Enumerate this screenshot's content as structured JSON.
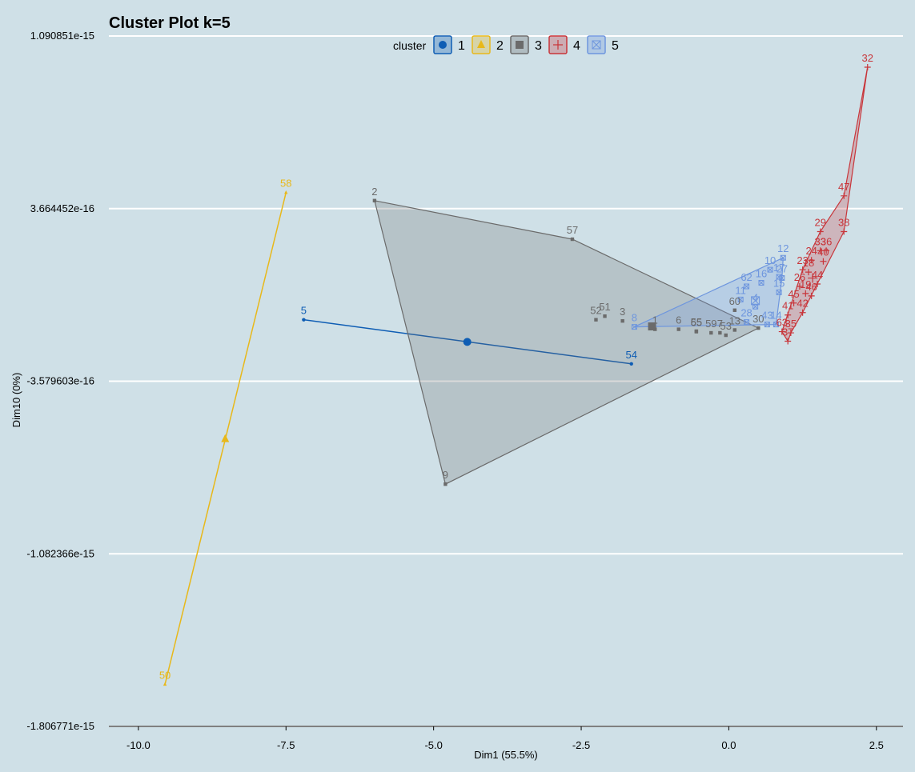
{
  "chart_data": {
    "type": "scatter",
    "title": "Cluster Plot k=5",
    "xlabel": "Dim1 (55.5%)",
    "ylabel": "Dim10 (0%)",
    "xlim": [
      -10.5,
      2.95
    ],
    "ylim": [
      -1.806771e-15,
      1.090851e-15
    ],
    "x_ticks": [
      -10.0,
      -7.5,
      -5.0,
      -2.5,
      0.0,
      2.5
    ],
    "x_tick_labels": [
      "-10.0",
      "-7.5",
      "-5.0",
      "-2.5",
      "0.0",
      "2.5"
    ],
    "y_ticks": [
      1.090851e-15,
      3.664452e-16,
      -3.579603e-16,
      -1.082366e-15,
      -1.806771e-15
    ],
    "y_tick_labels": [
      "1.090851e-15",
      "3.664452e-16",
      "-3.579603e-16",
      "-1.082366e-15",
      "-1.806771e-15"
    ],
    "grid": "horizontal",
    "legend": {
      "title": "cluster",
      "position": "top",
      "entries": [
        {
          "label": "1",
          "color": "#0e5db4",
          "shape": "circle"
        },
        {
          "label": "2",
          "color": "#e8b81a",
          "shape": "triangle"
        },
        {
          "label": "3",
          "color": "#6b6b6b",
          "shape": "square"
        },
        {
          "label": "4",
          "color": "#c8353a",
          "shape": "plus"
        },
        {
          "label": "5",
          "color": "#6e96de",
          "shape": "boxx"
        }
      ]
    },
    "series": [
      {
        "name": "1",
        "color": "#0e5db4",
        "shape": "circle",
        "points": [
          {
            "id": "5",
            "x": -7.2,
            "y": -1e-16
          },
          {
            "id": "54",
            "x": -1.65,
            "y": -2.85e-16
          }
        ],
        "hull": [
          "5",
          "54"
        ],
        "center": {
          "x": -4.43,
          "y": -1.93e-16
        }
      },
      {
        "name": "2",
        "color": "#e8b81a",
        "shape": "triangle",
        "points": [
          {
            "id": "58",
            "x": -7.5,
            "y": 4.34e-16
          },
          {
            "id": "50",
            "x": -9.55,
            "y": -1.63e-15
          }
        ],
        "hull": [
          "58",
          "50"
        ],
        "center": {
          "x": -8.53,
          "y": -6e-16
        }
      },
      {
        "name": "3",
        "color": "#6b6b6b",
        "shape": "square",
        "points": [
          {
            "id": "2",
            "x": -6.0,
            "y": 4e-16
          },
          {
            "id": "57",
            "x": -2.65,
            "y": 2.38e-16
          },
          {
            "id": "9",
            "x": -4.8,
            "y": -7.9e-16
          },
          {
            "id": "52",
            "x": -2.25,
            "y": -1e-16
          },
          {
            "id": "51",
            "x": -2.1,
            "y": -8.5e-17
          },
          {
            "id": "3",
            "x": -1.8,
            "y": -1.05e-16
          },
          {
            "id": "1",
            "x": -1.25,
            "y": -1.4e-16
          },
          {
            "id": "6",
            "x": -0.85,
            "y": -1.4e-16
          },
          {
            "id": "55",
            "x": -0.55,
            "y": -1.48e-16
          },
          {
            "id": "65",
            "x": -0.55,
            "y": -1.5e-16
          },
          {
            "id": "7",
            "x": -0.15,
            "y": -1.55e-16
          },
          {
            "id": "59",
            "x": -0.3,
            "y": -1.55e-16
          },
          {
            "id": "53",
            "x": -0.05,
            "y": -1.65e-16
          },
          {
            "id": "13",
            "x": 0.1,
            "y": -1.43e-16
          },
          {
            "id": "30",
            "x": 0.5,
            "y": -1.35e-16
          },
          {
            "id": "60",
            "x": 0.1,
            "y": -6e-17
          }
        ],
        "hull": [
          "2",
          "57",
          "30",
          "9"
        ],
        "center": {
          "x": -1.3,
          "y": -1.28e-16
        }
      },
      {
        "name": "4",
        "color": "#c8353a",
        "shape": "plus",
        "points": [
          {
            "id": "32",
            "x": 2.35,
            "y": 9.6e-16
          },
          {
            "id": "47",
            "x": 1.95,
            "y": 4.2e-16
          },
          {
            "id": "38",
            "x": 1.95,
            "y": 2.7e-16
          },
          {
            "id": "29",
            "x": 1.55,
            "y": 2.7e-16
          },
          {
            "id": "33",
            "x": 1.55,
            "y": 1.9e-16
          },
          {
            "id": "36",
            "x": 1.65,
            "y": 1.9e-16
          },
          {
            "id": "24",
            "x": 1.4,
            "y": 1.5e-16
          },
          {
            "id": "40",
            "x": 1.6,
            "y": 1.45e-16
          },
          {
            "id": "23",
            "x": 1.25,
            "y": 1.1e-16
          },
          {
            "id": "18",
            "x": 1.35,
            "y": 1e-16
          },
          {
            "id": "44",
            "x": 1.5,
            "y": 5e-17
          },
          {
            "id": "26",
            "x": 1.2,
            "y": 4e-17
          },
          {
            "id": "19",
            "x": 1.3,
            "y": 1e-17
          },
          {
            "id": "46",
            "x": 1.4,
            "y": 0.0
          },
          {
            "id": "45",
            "x": 1.1,
            "y": -3e-17
          },
          {
            "id": "41",
            "x": 1.0,
            "y": -8e-17
          },
          {
            "id": "42",
            "x": 1.25,
            "y": -7e-17
          },
          {
            "id": "63",
            "x": 0.9,
            "y": -1.5e-16
          },
          {
            "id": "35",
            "x": 1.05,
            "y": -1.55e-16
          },
          {
            "id": "37",
            "x": 1.0,
            "y": -1.9e-16
          }
        ],
        "hull": [
          "32",
          "38",
          "42",
          "35",
          "37",
          "63",
          "23",
          "29",
          "47"
        ],
        "center": {
          "x": 1.42,
          "y": 7.5e-17
        }
      },
      {
        "name": "5",
        "color": "#6e96de",
        "shape": "boxx",
        "points": [
          {
            "id": "12",
            "x": 0.92,
            "y": 1.6e-16
          },
          {
            "id": "10",
            "x": 0.7,
            "y": 1.1e-16
          },
          {
            "id": "17",
            "x": 0.85,
            "y": 8e-17
          },
          {
            "id": "27",
            "x": 0.9,
            "y": 7.5e-17
          },
          {
            "id": "16",
            "x": 0.55,
            "y": 5.5e-17
          },
          {
            "id": "62",
            "x": 0.3,
            "y": 4e-17
          },
          {
            "id": "15",
            "x": 0.85,
            "y": 1.5e-17
          },
          {
            "id": "11",
            "x": 0.2,
            "y": -1.5e-17
          },
          {
            "id": "4",
            "x": 0.45,
            "y": -4.5e-17
          },
          {
            "id": "8",
            "x": -1.6,
            "y": -1.3e-16
          },
          {
            "id": "14",
            "x": 0.8,
            "y": -1.2e-16
          },
          {
            "id": "43",
            "x": 0.65,
            "y": -1.2e-16
          },
          {
            "id": "28",
            "x": 0.3,
            "y": -1.1e-16
          }
        ],
        "hull": [
          "8",
          "12",
          "27",
          "14"
        ],
        "center": {
          "x": 0.45,
          "y": -2e-17
        }
      }
    ]
  }
}
